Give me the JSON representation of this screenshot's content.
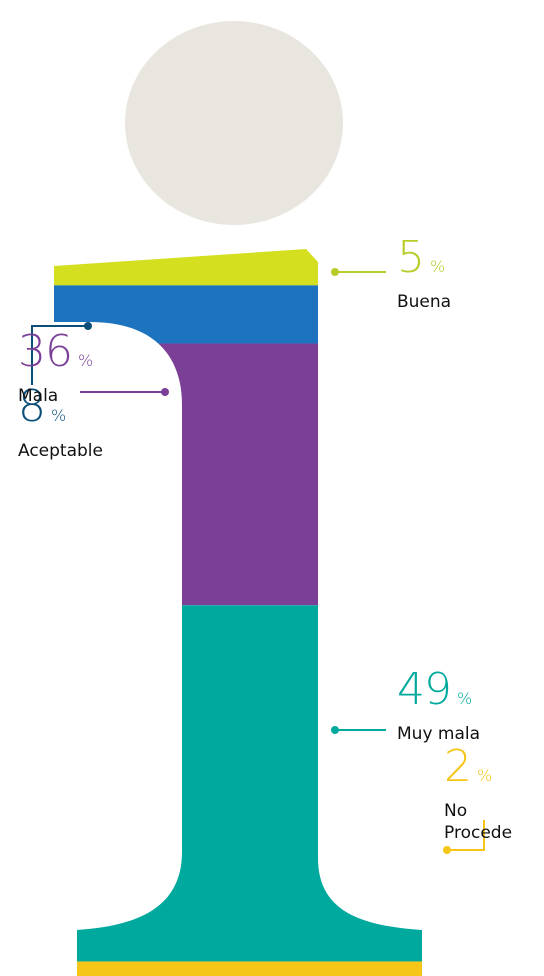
{
  "chart_data": {
    "type": "pictogram-stack",
    "categories": [
      "Buena",
      "Aceptable",
      "Mala",
      "Muy mala",
      "No Procede"
    ],
    "values": [
      5,
      8,
      36,
      49,
      2
    ],
    "unit": "%",
    "colors": [
      "#d4df1f",
      "#1e73be",
      "#7b3f98",
      "#00a99d",
      "#f5c518"
    ],
    "label_colors": [
      "#b8cc2a",
      "#0b4f79",
      "#7b3f98",
      "#00a99d",
      "#f5c518"
    ]
  }
}
